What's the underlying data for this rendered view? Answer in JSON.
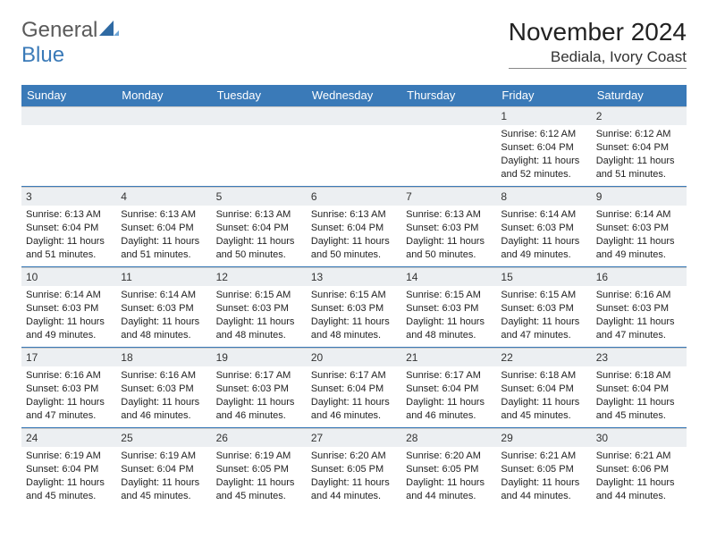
{
  "logo": {
    "line1": "General",
    "line2": "Blue"
  },
  "header": {
    "month_title": "November 2024",
    "location": "Bediala, Ivory Coast"
  },
  "colors": {
    "accent": "#3a7ab8",
    "daynum_bg": "#eceff2",
    "bg": "#ffffff",
    "text": "#222222"
  },
  "weekdays": [
    "Sunday",
    "Monday",
    "Tuesday",
    "Wednesday",
    "Thursday",
    "Friday",
    "Saturday"
  ],
  "weeks": [
    [
      {
        "day": "",
        "sunrise": "",
        "sunset": "",
        "daylight": ""
      },
      {
        "day": "",
        "sunrise": "",
        "sunset": "",
        "daylight": ""
      },
      {
        "day": "",
        "sunrise": "",
        "sunset": "",
        "daylight": ""
      },
      {
        "day": "",
        "sunrise": "",
        "sunset": "",
        "daylight": ""
      },
      {
        "day": "",
        "sunrise": "",
        "sunset": "",
        "daylight": ""
      },
      {
        "day": "1",
        "sunrise": "Sunrise: 6:12 AM",
        "sunset": "Sunset: 6:04 PM",
        "daylight": "Daylight: 11 hours and 52 minutes."
      },
      {
        "day": "2",
        "sunrise": "Sunrise: 6:12 AM",
        "sunset": "Sunset: 6:04 PM",
        "daylight": "Daylight: 11 hours and 51 minutes."
      }
    ],
    [
      {
        "day": "3",
        "sunrise": "Sunrise: 6:13 AM",
        "sunset": "Sunset: 6:04 PM",
        "daylight": "Daylight: 11 hours and 51 minutes."
      },
      {
        "day": "4",
        "sunrise": "Sunrise: 6:13 AM",
        "sunset": "Sunset: 6:04 PM",
        "daylight": "Daylight: 11 hours and 51 minutes."
      },
      {
        "day": "5",
        "sunrise": "Sunrise: 6:13 AM",
        "sunset": "Sunset: 6:04 PM",
        "daylight": "Daylight: 11 hours and 50 minutes."
      },
      {
        "day": "6",
        "sunrise": "Sunrise: 6:13 AM",
        "sunset": "Sunset: 6:04 PM",
        "daylight": "Daylight: 11 hours and 50 minutes."
      },
      {
        "day": "7",
        "sunrise": "Sunrise: 6:13 AM",
        "sunset": "Sunset: 6:03 PM",
        "daylight": "Daylight: 11 hours and 50 minutes."
      },
      {
        "day": "8",
        "sunrise": "Sunrise: 6:14 AM",
        "sunset": "Sunset: 6:03 PM",
        "daylight": "Daylight: 11 hours and 49 minutes."
      },
      {
        "day": "9",
        "sunrise": "Sunrise: 6:14 AM",
        "sunset": "Sunset: 6:03 PM",
        "daylight": "Daylight: 11 hours and 49 minutes."
      }
    ],
    [
      {
        "day": "10",
        "sunrise": "Sunrise: 6:14 AM",
        "sunset": "Sunset: 6:03 PM",
        "daylight": "Daylight: 11 hours and 49 minutes."
      },
      {
        "day": "11",
        "sunrise": "Sunrise: 6:14 AM",
        "sunset": "Sunset: 6:03 PM",
        "daylight": "Daylight: 11 hours and 48 minutes."
      },
      {
        "day": "12",
        "sunrise": "Sunrise: 6:15 AM",
        "sunset": "Sunset: 6:03 PM",
        "daylight": "Daylight: 11 hours and 48 minutes."
      },
      {
        "day": "13",
        "sunrise": "Sunrise: 6:15 AM",
        "sunset": "Sunset: 6:03 PM",
        "daylight": "Daylight: 11 hours and 48 minutes."
      },
      {
        "day": "14",
        "sunrise": "Sunrise: 6:15 AM",
        "sunset": "Sunset: 6:03 PM",
        "daylight": "Daylight: 11 hours and 48 minutes."
      },
      {
        "day": "15",
        "sunrise": "Sunrise: 6:15 AM",
        "sunset": "Sunset: 6:03 PM",
        "daylight": "Daylight: 11 hours and 47 minutes."
      },
      {
        "day": "16",
        "sunrise": "Sunrise: 6:16 AM",
        "sunset": "Sunset: 6:03 PM",
        "daylight": "Daylight: 11 hours and 47 minutes."
      }
    ],
    [
      {
        "day": "17",
        "sunrise": "Sunrise: 6:16 AM",
        "sunset": "Sunset: 6:03 PM",
        "daylight": "Daylight: 11 hours and 47 minutes."
      },
      {
        "day": "18",
        "sunrise": "Sunrise: 6:16 AM",
        "sunset": "Sunset: 6:03 PM",
        "daylight": "Daylight: 11 hours and 46 minutes."
      },
      {
        "day": "19",
        "sunrise": "Sunrise: 6:17 AM",
        "sunset": "Sunset: 6:03 PM",
        "daylight": "Daylight: 11 hours and 46 minutes."
      },
      {
        "day": "20",
        "sunrise": "Sunrise: 6:17 AM",
        "sunset": "Sunset: 6:04 PM",
        "daylight": "Daylight: 11 hours and 46 minutes."
      },
      {
        "day": "21",
        "sunrise": "Sunrise: 6:17 AM",
        "sunset": "Sunset: 6:04 PM",
        "daylight": "Daylight: 11 hours and 46 minutes."
      },
      {
        "day": "22",
        "sunrise": "Sunrise: 6:18 AM",
        "sunset": "Sunset: 6:04 PM",
        "daylight": "Daylight: 11 hours and 45 minutes."
      },
      {
        "day": "23",
        "sunrise": "Sunrise: 6:18 AM",
        "sunset": "Sunset: 6:04 PM",
        "daylight": "Daylight: 11 hours and 45 minutes."
      }
    ],
    [
      {
        "day": "24",
        "sunrise": "Sunrise: 6:19 AM",
        "sunset": "Sunset: 6:04 PM",
        "daylight": "Daylight: 11 hours and 45 minutes."
      },
      {
        "day": "25",
        "sunrise": "Sunrise: 6:19 AM",
        "sunset": "Sunset: 6:04 PM",
        "daylight": "Daylight: 11 hours and 45 minutes."
      },
      {
        "day": "26",
        "sunrise": "Sunrise: 6:19 AM",
        "sunset": "Sunset: 6:05 PM",
        "daylight": "Daylight: 11 hours and 45 minutes."
      },
      {
        "day": "27",
        "sunrise": "Sunrise: 6:20 AM",
        "sunset": "Sunset: 6:05 PM",
        "daylight": "Daylight: 11 hours and 44 minutes."
      },
      {
        "day": "28",
        "sunrise": "Sunrise: 6:20 AM",
        "sunset": "Sunset: 6:05 PM",
        "daylight": "Daylight: 11 hours and 44 minutes."
      },
      {
        "day": "29",
        "sunrise": "Sunrise: 6:21 AM",
        "sunset": "Sunset: 6:05 PM",
        "daylight": "Daylight: 11 hours and 44 minutes."
      },
      {
        "day": "30",
        "sunrise": "Sunrise: 6:21 AM",
        "sunset": "Sunset: 6:06 PM",
        "daylight": "Daylight: 11 hours and 44 minutes."
      }
    ]
  ]
}
